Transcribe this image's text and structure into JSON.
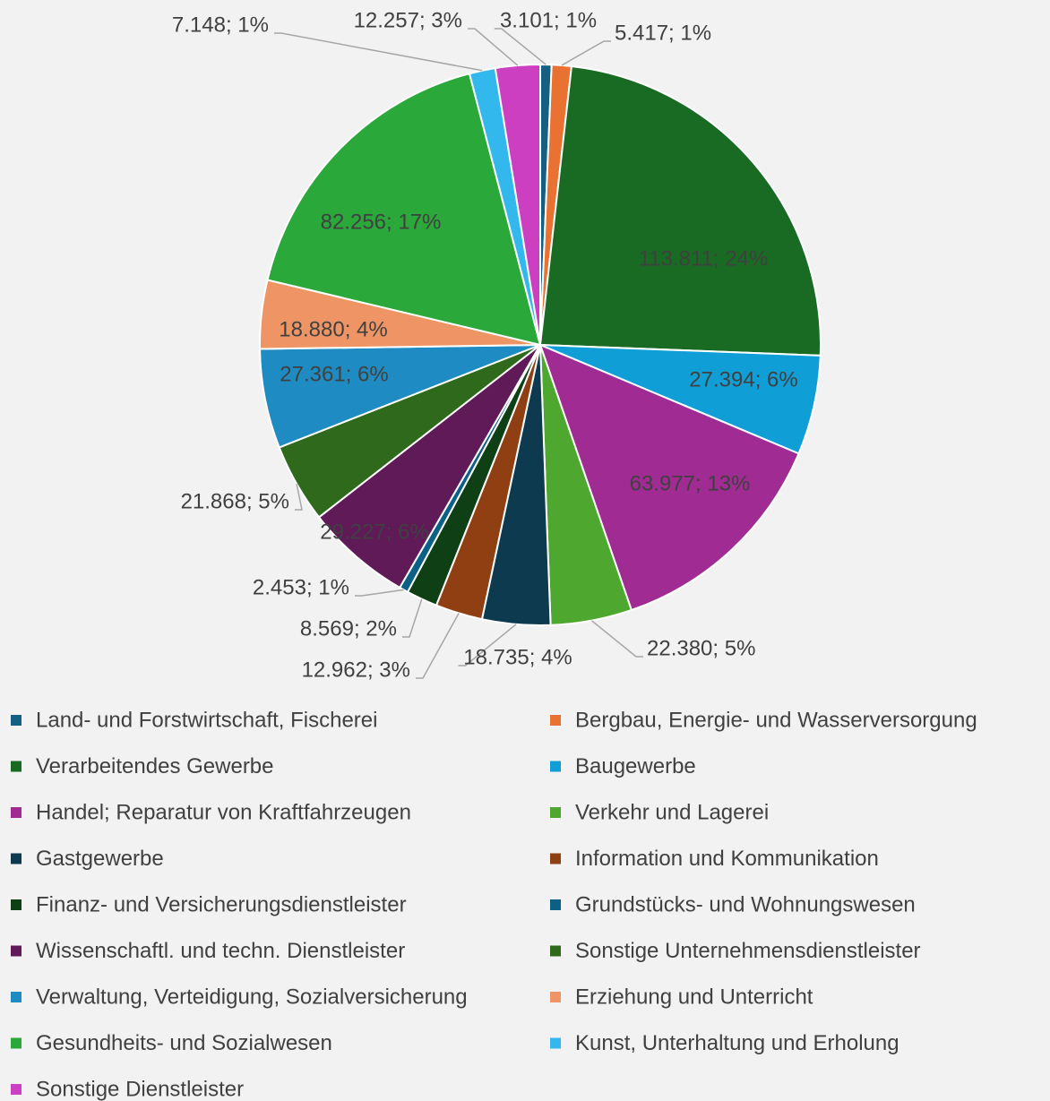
{
  "chart_data": {
    "type": "pie",
    "categories": [
      "Land- und Forstwirtschaft, Fischerei",
      "Bergbau, Energie- und Wasserversorgung",
      "Verarbeitendes Gewerbe",
      "Baugewerbe",
      "Handel; Reparatur von Kraftfahrzeugen",
      "Verkehr und Lagerei",
      "Gastgewerbe",
      "Information und Kommunikation",
      "Finanz- und Versicherungsdienstleister",
      "Grundstücks- und Wohnungswesen",
      "Wissenschaftl. und techn. Dienstleister",
      "Sonstige Unternehmensdienstleister",
      "Verwaltung, Verteidigung, Sozialversicherung",
      "Erziehung und Unterricht",
      "Gesundheits- und Sozialwesen",
      "Kunst, Unterhaltung und Erholung",
      "Sonstige Dienstleister"
    ],
    "values": [
      3101,
      5417,
      113811,
      27394,
      63977,
      22380,
      18735,
      12962,
      8569,
      2453,
      29227,
      21868,
      27361,
      18880,
      82256,
      7148,
      12257
    ],
    "value_labels": [
      "3.101; 1%",
      "5.417; 1%",
      "113.811; 24%",
      "27.394; 6%",
      "63.977; 13%",
      "22.380; 5%",
      "18.735; 4%",
      "12.962; 3%",
      "8.569; 2%",
      "2.453; 1%",
      "29.227; 6%",
      "21.868; 5%",
      "27.361; 6%",
      "18.880; 4%",
      "82.256; 17%",
      "7.148; 1%",
      "12.257; 3%"
    ],
    "colors": [
      "#156082",
      "#e97132",
      "#196b24",
      "#0f9ed5",
      "#a02b93",
      "#4ea72e",
      "#0e3a4f",
      "#8f3f12",
      "#0f4015",
      "#0c5f85",
      "#5f1a57",
      "#2f6a1c",
      "#1e8cc2",
      "#ef9565",
      "#2aa83a",
      "#33b8ee",
      "#cc3fc0"
    ],
    "legend": "bottom"
  }
}
